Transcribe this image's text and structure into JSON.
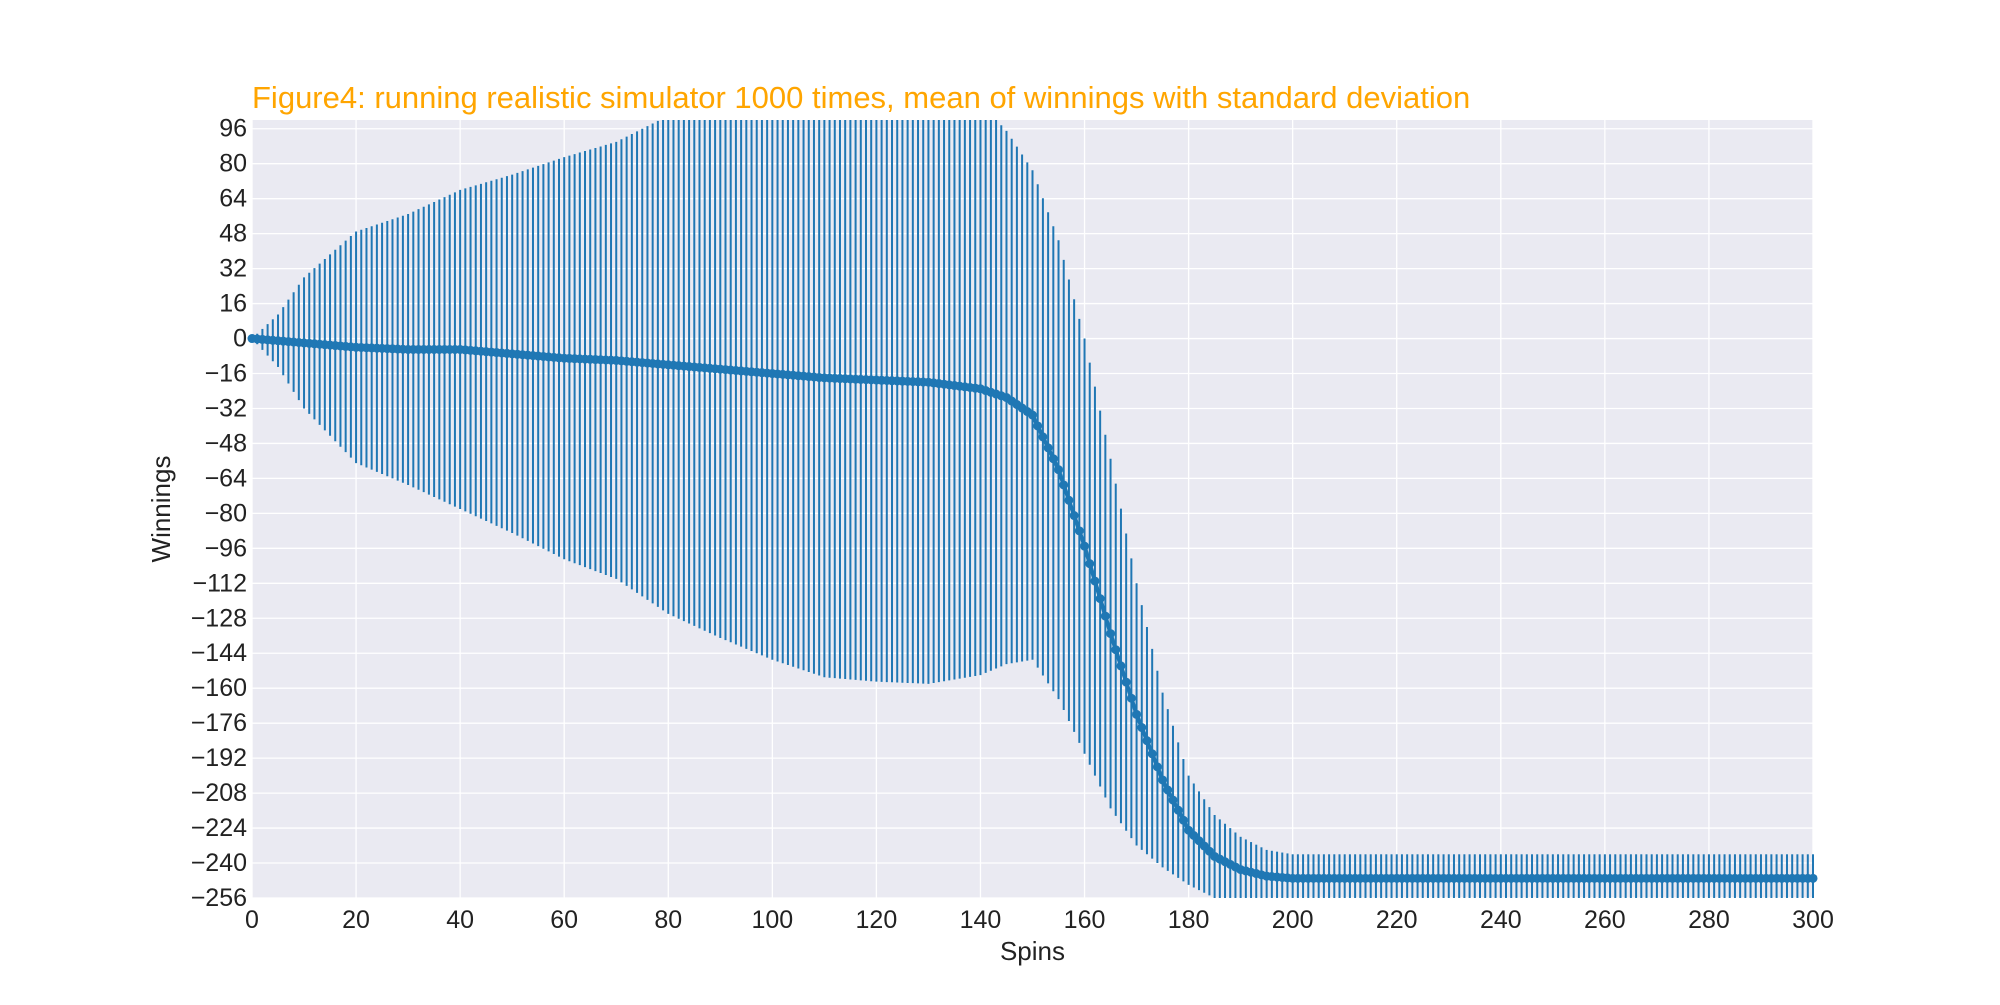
{
  "chart_data": {
    "type": "line",
    "title": "Figure4: running realistic simulator 1000 times, mean of winnings with standard deviation",
    "xlabel": "Spins",
    "ylabel": "Winnings",
    "xlim": [
      0,
      300
    ],
    "ylim": [
      -256,
      100
    ],
    "xticks": [
      0,
      20,
      40,
      60,
      80,
      100,
      120,
      140,
      160,
      180,
      200,
      220,
      240,
      260,
      280,
      300
    ],
    "yticks": [
      96,
      80,
      64,
      48,
      32,
      16,
      0,
      -16,
      -32,
      -48,
      -64,
      -80,
      -96,
      -112,
      -128,
      -144,
      -160,
      -176,
      -192,
      -208,
      -224,
      -240,
      -256
    ],
    "grid": true,
    "colors": {
      "title": "#ffa500",
      "series": "#1f77b4",
      "plot_background": "#eaeaf2",
      "grid": "#ffffff"
    },
    "series": [
      {
        "marker": "circle",
        "error_bars": "standard deviation",
        "anchors_x": [
          0,
          5,
          10,
          20,
          30,
          40,
          50,
          60,
          70,
          80,
          90,
          100,
          110,
          120,
          130,
          140,
          145,
          150,
          155,
          160,
          165,
          170,
          175,
          180,
          185,
          190,
          195,
          200,
          210,
          300
        ],
        "anchors_mean": [
          0,
          -1,
          -2,
          -4,
          -5,
          -5,
          -7,
          -9,
          -10,
          -12,
          -14,
          -16,
          -18,
          -19,
          -20,
          -23,
          -27,
          -35,
          -60,
          -95,
          -135,
          -172,
          -202,
          -225,
          -237,
          -243,
          -246,
          -247,
          -247,
          -247
        ],
        "anchors_std": [
          0,
          12,
          30,
          53,
          62,
          73,
          82,
          92,
          100,
          114,
          123,
          131,
          137,
          138,
          138,
          131,
          122,
          112,
          105,
          95,
          80,
          60,
          40,
          25,
          19,
          15,
          12,
          11,
          11,
          11
        ]
      }
    ]
  }
}
